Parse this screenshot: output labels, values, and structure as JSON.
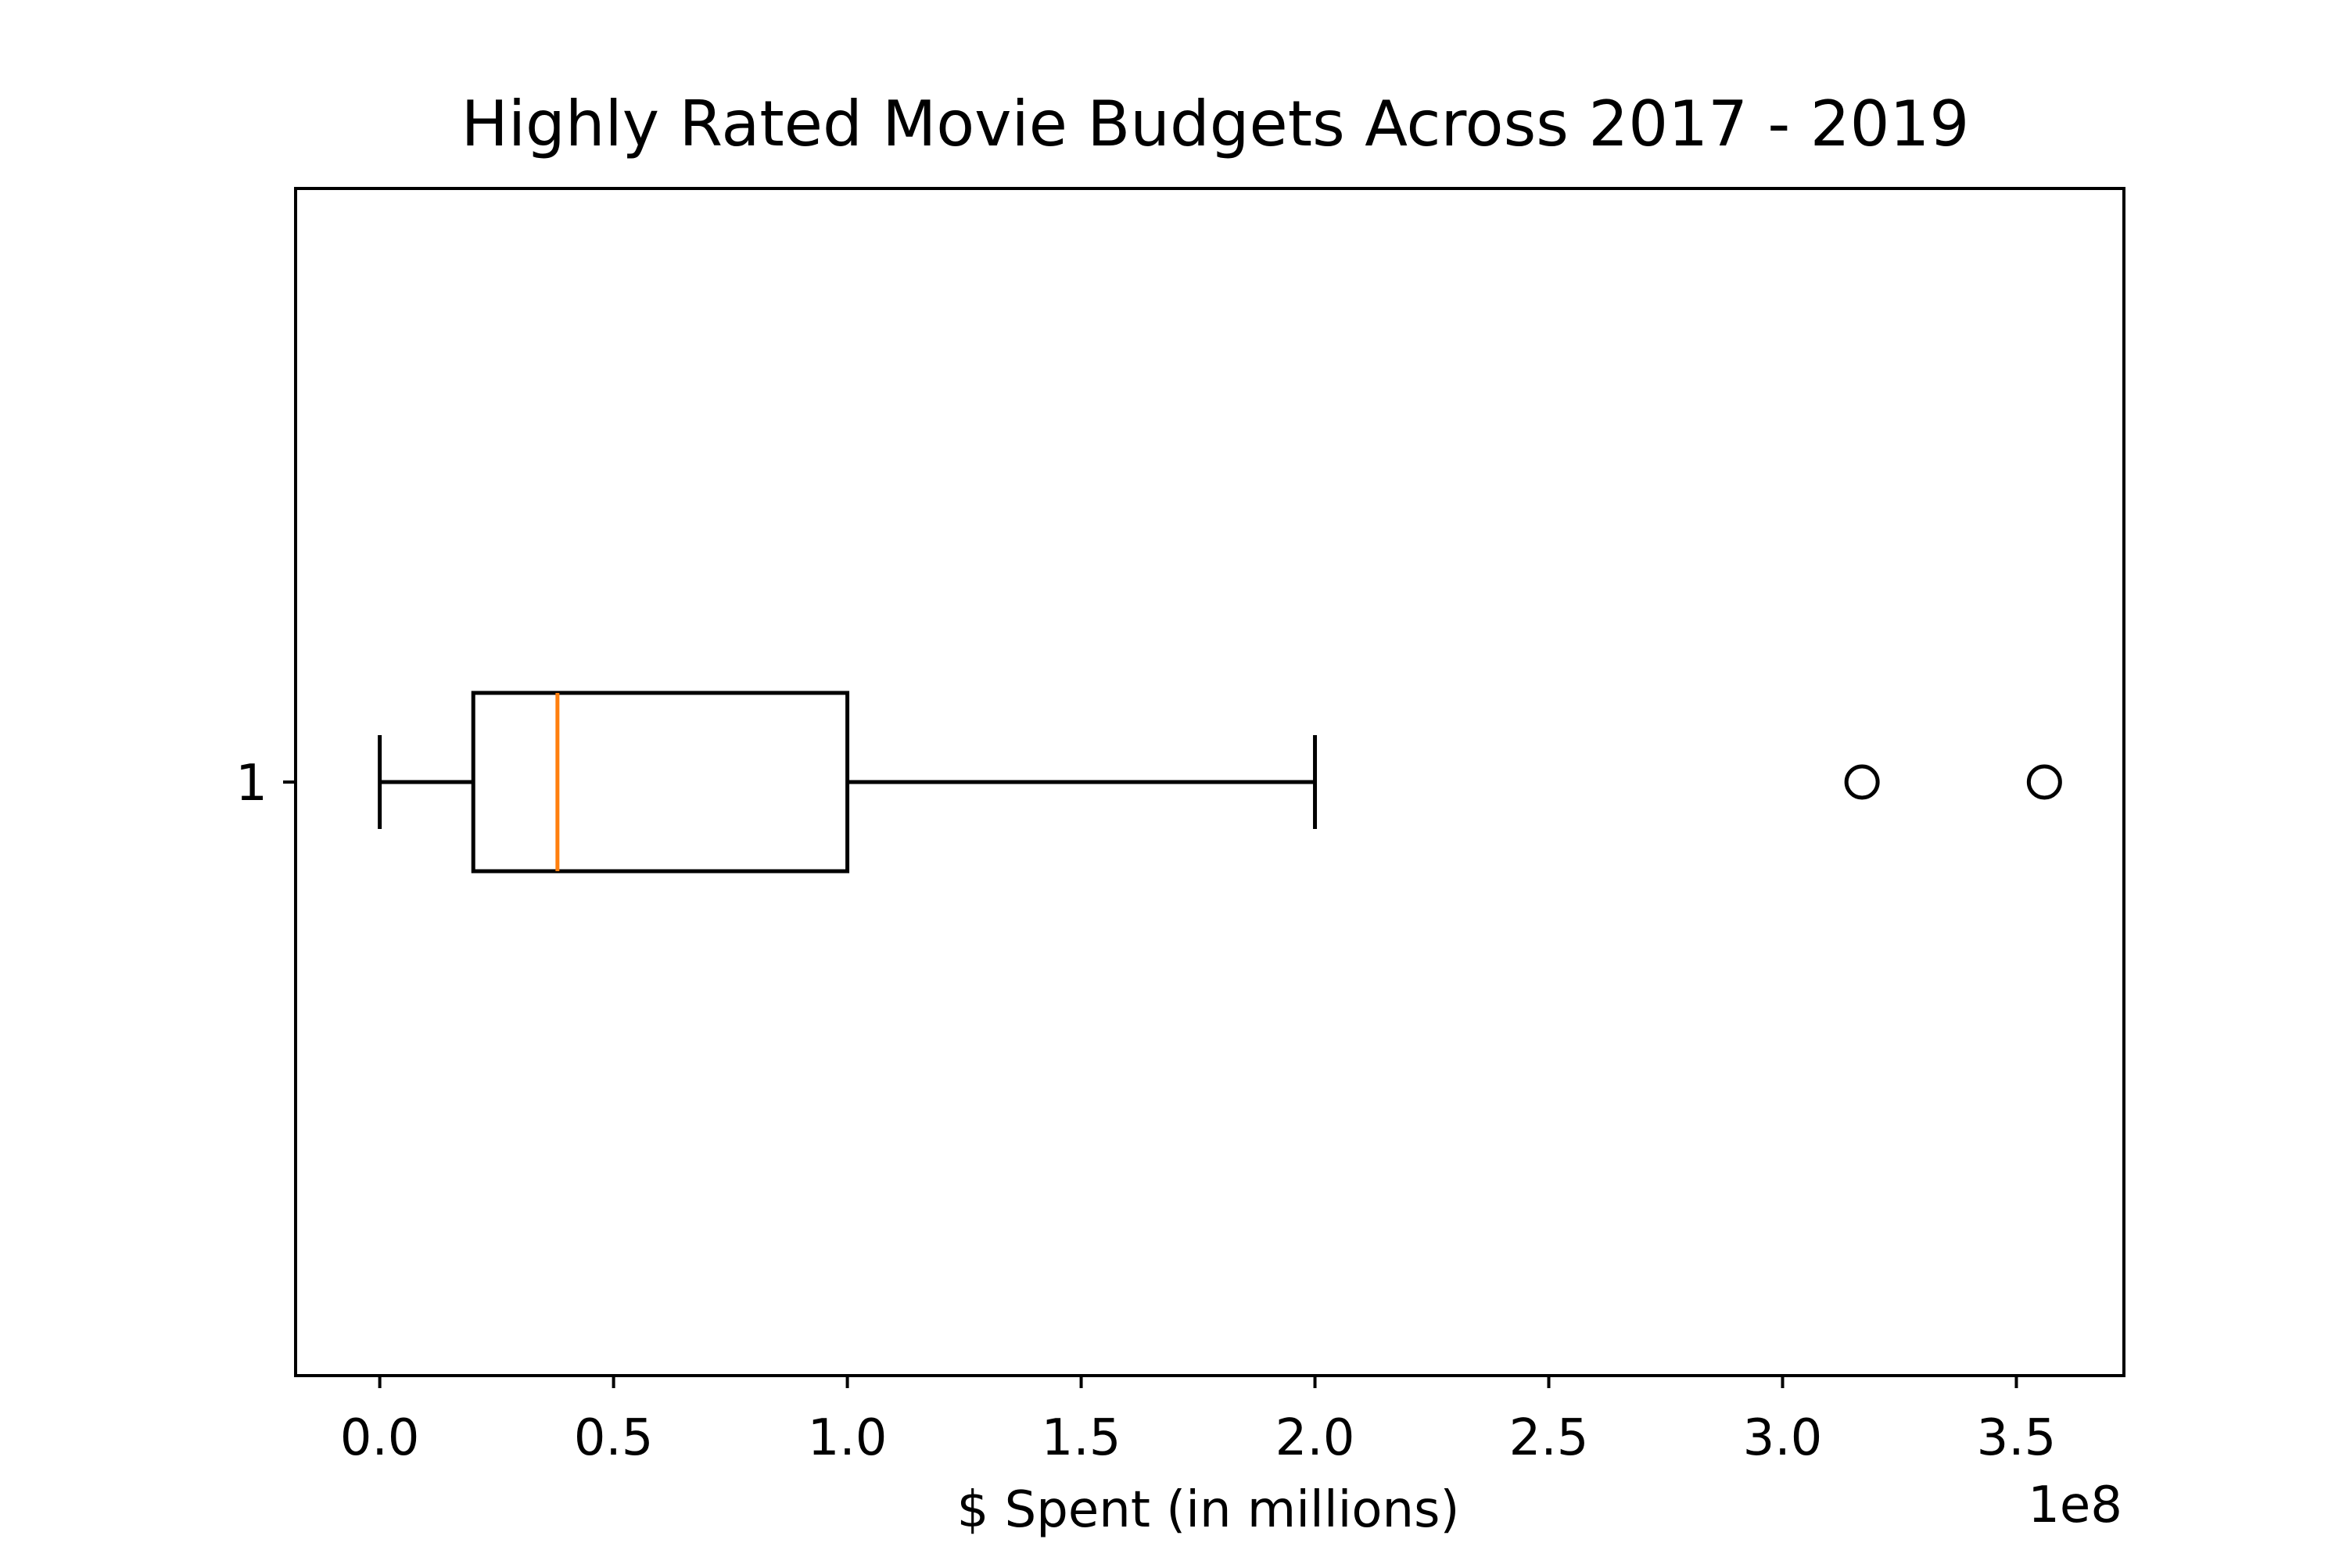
{
  "chart_data": {
    "type": "boxplot",
    "orientation": "horizontal",
    "title": "Highly Rated Movie Budgets Across 2017 - 2019",
    "xlabel": "$ Spent (in millions)",
    "x_offset_label": "1e8",
    "xlim": [
      -0.18,
      3.73
    ],
    "x_ticks": [
      0.0,
      0.5,
      1.0,
      1.5,
      2.0,
      2.5,
      3.0,
      3.5
    ],
    "x_tick_labels": [
      "0.0",
      "0.5",
      "1.0",
      "1.5",
      "2.0",
      "2.5",
      "3.0",
      "3.5"
    ],
    "y_tick_labels": [
      "1"
    ],
    "grid": false,
    "boxes": [
      {
        "position": 1,
        "whisker_low": 0.0,
        "q1": 0.2,
        "median": 0.38,
        "q3": 1.0,
        "whisker_high": 2.0,
        "outliers": [
          3.17,
          3.56
        ]
      }
    ],
    "colors": {
      "box": "#000000",
      "median": "#ff7f0e",
      "outlier_edge": "#000000"
    }
  }
}
